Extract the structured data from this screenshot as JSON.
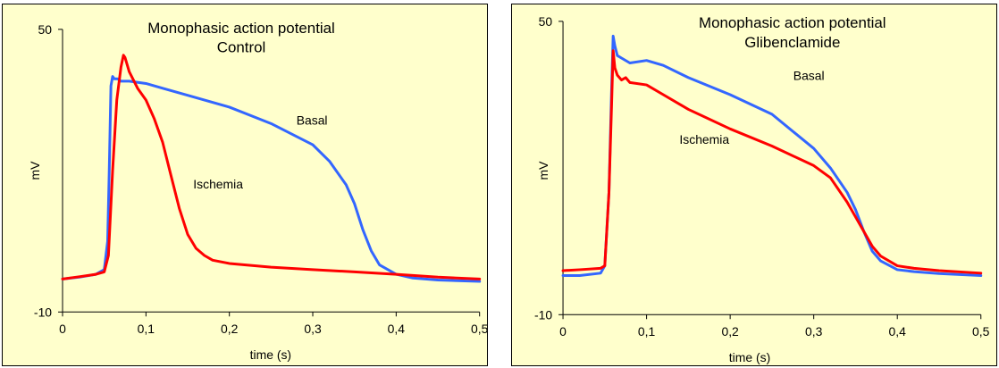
{
  "chart_data": [
    {
      "type": "line",
      "title": "Monophasic action potential",
      "subtitle": "Control",
      "xlabel": "time (s)",
      "ylabel": "mV",
      "xlim": [
        0,
        0.5
      ],
      "ylim": [
        -10,
        50
      ],
      "xticks": [
        "0",
        "0,1",
        "0,2",
        "0,3",
        "0,4",
        "0,5"
      ],
      "yticks": [
        "-10",
        "50"
      ],
      "grid": false,
      "series": [
        {
          "name": "Basal",
          "color": "#3366ff",
          "x": [
            0,
            0.02,
            0.04,
            0.05,
            0.054,
            0.056,
            0.058,
            0.06,
            0.062,
            0.066,
            0.07,
            0.08,
            0.1,
            0.12,
            0.15,
            0.2,
            0.25,
            0.3,
            0.32,
            0.34,
            0.35,
            0.36,
            0.37,
            0.38,
            0.39,
            0.4,
            0.42,
            0.45,
            0.5
          ],
          "y": [
            -3,
            -2.6,
            -2,
            -1,
            5,
            20,
            38,
            40,
            39.5,
            39.5,
            39,
            39,
            38.5,
            37.5,
            36,
            33.5,
            30,
            25.5,
            22,
            17,
            13,
            7.5,
            3,
            0,
            -1,
            -2,
            -2.8,
            -3.2,
            -3.5
          ]
        },
        {
          "name": "Ischemia",
          "color": "#ff0000",
          "x": [
            0,
            0.02,
            0.04,
            0.05,
            0.055,
            0.06,
            0.065,
            0.07,
            0.073,
            0.075,
            0.08,
            0.09,
            0.1,
            0.11,
            0.12,
            0.13,
            0.14,
            0.15,
            0.16,
            0.17,
            0.18,
            0.2,
            0.25,
            0.3,
            0.35,
            0.4,
            0.45,
            0.5
          ],
          "y": [
            -3,
            -2.5,
            -2,
            -1.5,
            2,
            20,
            35,
            42,
            44.5,
            44,
            41,
            37.5,
            35,
            31,
            26,
            19,
            12,
            6.5,
            3.5,
            2,
            1,
            0.3,
            -0.5,
            -1,
            -1.5,
            -2,
            -2.6,
            -3
          ]
        }
      ],
      "annotations": [
        "Basal",
        "Ischemia"
      ]
    },
    {
      "type": "line",
      "title": "Monophasic action potential",
      "subtitle": "Glibenclamide",
      "xlabel": "time (s)",
      "ylabel": "mV",
      "xlim": [
        0,
        0.5
      ],
      "ylim": [
        -10,
        50
      ],
      "xticks": [
        "0",
        "0,1",
        "0,2",
        "0,3",
        "0,4",
        "0,5"
      ],
      "yticks": [
        "-10",
        "50"
      ],
      "grid": false,
      "series": [
        {
          "name": "Basal",
          "color": "#3366ff",
          "x": [
            0,
            0.02,
            0.045,
            0.05,
            0.055,
            0.058,
            0.06,
            0.062,
            0.065,
            0.07,
            0.08,
            0.1,
            0.12,
            0.15,
            0.2,
            0.25,
            0.3,
            0.32,
            0.34,
            0.35,
            0.36,
            0.37,
            0.38,
            0.4,
            0.42,
            0.45,
            0.5
          ],
          "y": [
            -2,
            -2,
            -1.5,
            0,
            15,
            35,
            47,
            45,
            43,
            42.5,
            41.5,
            42,
            41,
            38.5,
            35,
            31,
            24,
            20,
            15,
            11.5,
            7,
            3,
            1,
            -0.8,
            -1.2,
            -1.6,
            -2
          ]
        },
        {
          "name": "Ischemia",
          "color": "#ff0000",
          "x": [
            0,
            0.02,
            0.045,
            0.05,
            0.055,
            0.058,
            0.06,
            0.062,
            0.065,
            0.07,
            0.075,
            0.08,
            0.1,
            0.12,
            0.15,
            0.2,
            0.25,
            0.3,
            0.32,
            0.34,
            0.35,
            0.36,
            0.37,
            0.38,
            0.4,
            0.42,
            0.45,
            0.5
          ],
          "y": [
            -1,
            -0.8,
            -0.5,
            0,
            15,
            32,
            44,
            40.5,
            39,
            38,
            38.5,
            37.5,
            37,
            35,
            32,
            28,
            24.5,
            20.5,
            18,
            13,
            10,
            7,
            4,
            2,
            0,
            -0.5,
            -1,
            -1.5
          ]
        }
      ],
      "annotations": [
        "Basal",
        "Ischemia"
      ]
    }
  ]
}
